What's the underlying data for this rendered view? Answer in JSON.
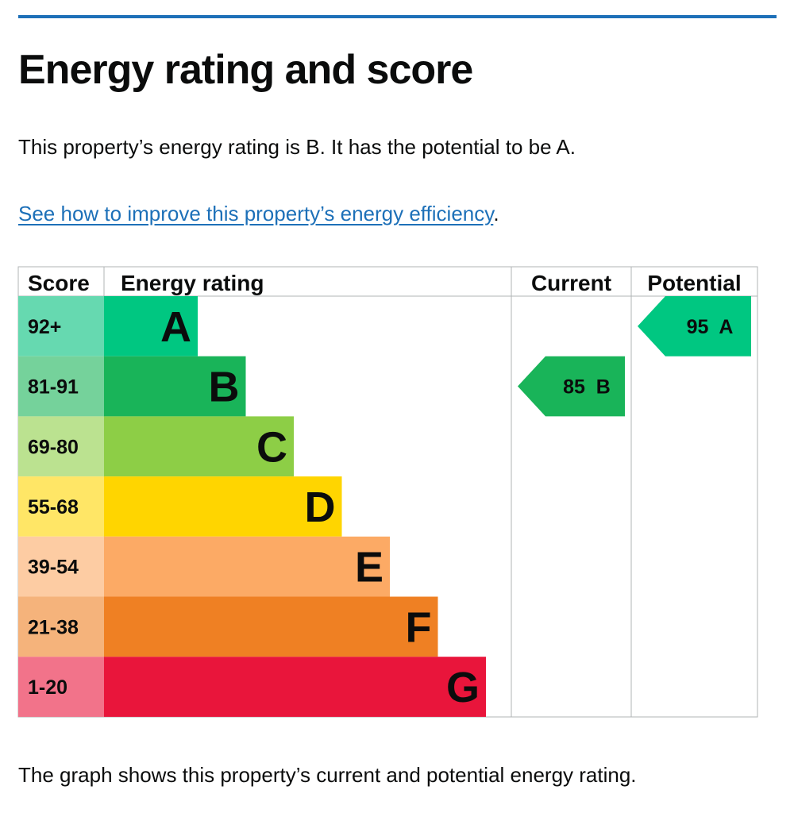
{
  "page": {
    "title": "Energy rating and score",
    "intro": "This property’s energy rating is B. It has the potential to be A.",
    "link_text": "See how to improve this property’s energy efficiency",
    "link_suffix": ".",
    "caption": "The graph shows this property’s current and potential energy rating.",
    "accent_color": "#1d70b8"
  },
  "chart_data": {
    "type": "bar",
    "columns": [
      "Score",
      "Energy rating",
      "Current",
      "Potential"
    ],
    "categories": [
      "A",
      "B",
      "C",
      "D",
      "E",
      "F",
      "G"
    ],
    "score_ranges": [
      "92+",
      "81-91",
      "69-80",
      "55-68",
      "39-54",
      "21-38",
      "1-20"
    ],
    "band_colors": [
      "#00c781",
      "#19b459",
      "#8dce46",
      "#ffd500",
      "#fcaa65",
      "#ef8023",
      "#e9153b"
    ],
    "score_colors": [
      "#66d9b0",
      "#75d29b",
      "#bbe290",
      "#ffe666",
      "#fdcca3",
      "#f5b37b",
      "#f2738a"
    ],
    "current": {
      "score": 85,
      "rating": "B",
      "label": "85  B"
    },
    "potential": {
      "score": 95,
      "rating": "A",
      "label": "95  A"
    }
  }
}
